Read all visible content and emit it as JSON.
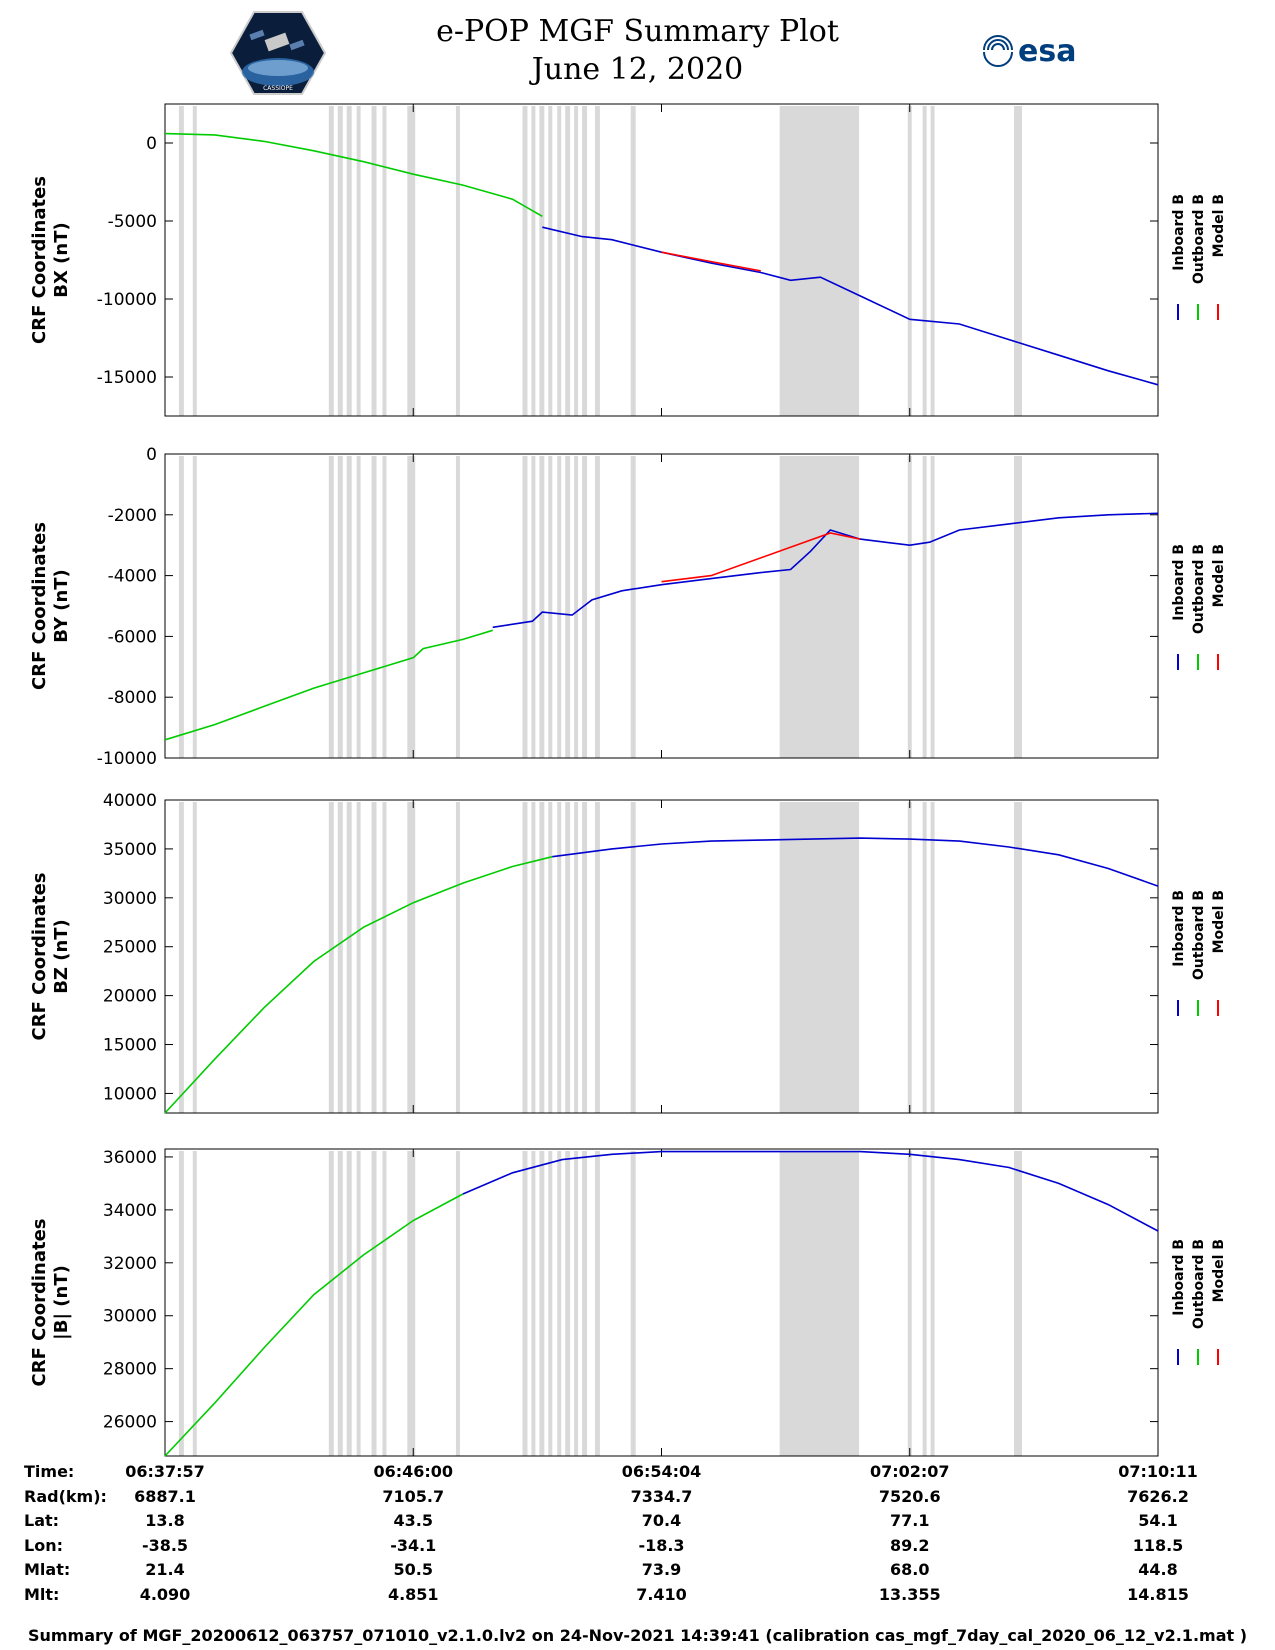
{
  "header": {
    "title_line1": "e-POP MGF Summary Plot",
    "title_line2": "June 12, 2020",
    "logo_left_text": "CASSIOPE",
    "logo_right_text": "esa"
  },
  "legend": [
    "Inboard B",
    "Outboard B",
    "Model B"
  ],
  "colors": {
    "inboard": "#0000d0",
    "outboard": "#00cc00",
    "model": "#ff0000",
    "gap": "#d9d9d9"
  },
  "chart_data": [
    {
      "type": "line",
      "ylabel_line1": "CRF Coordinates",
      "ylabel_line2": "BX (nT)",
      "ylim": [
        -17500,
        2500
      ],
      "yticks": [
        0,
        -5000,
        -10000,
        -15000
      ],
      "ytick_labels": [
        "0",
        "-5000",
        "-10000",
        "-15000"
      ],
      "series": [
        {
          "name": "Outboard B",
          "x": [
            0,
            0.05,
            0.1,
            0.15,
            0.2,
            0.25,
            0.3,
            0.35,
            0.38
          ],
          "values": [
            600,
            520,
            100,
            -500,
            -1200,
            -2000,
            -2700,
            -3600,
            -4700
          ]
        },
        {
          "name": "Inboard B",
          "x": [
            0.38,
            0.42,
            0.45,
            0.5,
            0.55,
            0.6,
            0.63,
            0.66,
            0.7,
            0.75,
            0.8,
            0.85,
            0.9,
            0.95,
            1.0
          ],
          "values": [
            -5400,
            -6000,
            -6200,
            -7000,
            -7700,
            -8300,
            -8800,
            -8600,
            -9800,
            -11300,
            -11600,
            -12600,
            -13600,
            -14600,
            -15500
          ]
        },
        {
          "name": "Model B",
          "x": [
            0.5,
            0.55,
            0.6
          ],
          "values": [
            -7000,
            -7600,
            -8200
          ]
        }
      ]
    },
    {
      "type": "line",
      "ylabel_line1": "CRF Coordinates",
      "ylabel_line2": "BY (nT)",
      "ylim": [
        -10000,
        0
      ],
      "yticks": [
        0,
        -2000,
        -4000,
        -6000,
        -8000,
        -10000
      ],
      "ytick_labels": [
        "0",
        "-2000",
        "-4000",
        "-6000",
        "-8000",
        "-10000"
      ],
      "series": [
        {
          "name": "Outboard B",
          "x": [
            0,
            0.05,
            0.1,
            0.15,
            0.2,
            0.25,
            0.26,
            0.3,
            0.33
          ],
          "values": [
            -9400,
            -8900,
            -8300,
            -7700,
            -7200,
            -6700,
            -6400,
            -6100,
            -5800
          ]
        },
        {
          "name": "Inboard B",
          "x": [
            0.33,
            0.37,
            0.38,
            0.41,
            0.43,
            0.46,
            0.5,
            0.55,
            0.6,
            0.63,
            0.65,
            0.67,
            0.7,
            0.75,
            0.77,
            0.8,
            0.85,
            0.9,
            0.95,
            1.0
          ],
          "values": [
            -5700,
            -5500,
            -5200,
            -5300,
            -4800,
            -4500,
            -4300,
            -4100,
            -3900,
            -3800,
            -3200,
            -2500,
            -2800,
            -3000,
            -2900,
            -2500,
            -2300,
            -2100,
            -2000,
            -1950
          ]
        },
        {
          "name": "Model B",
          "x": [
            0.5,
            0.55,
            0.67,
            0.7
          ],
          "values": [
            -4200,
            -4000,
            -2600,
            -2800
          ]
        }
      ]
    },
    {
      "type": "line",
      "ylabel_line1": "CRF Coordinates",
      "ylabel_line2": "BZ (nT)",
      "ylim": [
        8000,
        40000
      ],
      "yticks": [
        10000,
        15000,
        20000,
        25000,
        30000,
        35000,
        40000
      ],
      "ytick_labels": [
        "10000",
        "15000",
        "20000",
        "25000",
        "30000",
        "35000",
        "40000"
      ],
      "series": [
        {
          "name": "Outboard B",
          "x": [
            0,
            0.05,
            0.1,
            0.15,
            0.2,
            0.25,
            0.3,
            0.35,
            0.39
          ],
          "values": [
            8000,
            13500,
            18800,
            23500,
            27000,
            29500,
            31500,
            33200,
            34200
          ]
        },
        {
          "name": "Inboard B",
          "x": [
            0.39,
            0.45,
            0.5,
            0.55,
            0.6,
            0.65,
            0.7,
            0.75,
            0.8,
            0.85,
            0.9,
            0.95,
            1.0
          ],
          "values": [
            34200,
            35000,
            35500,
            35800,
            35900,
            36000,
            36100,
            36000,
            35800,
            35200,
            34400,
            33000,
            31200
          ]
        }
      ]
    },
    {
      "type": "line",
      "ylabel_line1": "CRF Coordinates",
      "ylabel_line2": "|B| (nT)",
      "ylim": [
        24700,
        36300
      ],
      "yticks": [
        26000,
        28000,
        30000,
        32000,
        34000,
        36000
      ],
      "ytick_labels": [
        "26000",
        "28000",
        "30000",
        "32000",
        "34000",
        "36000"
      ],
      "series": [
        {
          "name": "Outboard B",
          "x": [
            0,
            0.05,
            0.1,
            0.15,
            0.2,
            0.25,
            0.3
          ],
          "values": [
            24700,
            26700,
            28800,
            30800,
            32300,
            33600,
            34600
          ]
        },
        {
          "name": "Inboard B",
          "x": [
            0.3,
            0.35,
            0.4,
            0.45,
            0.5,
            0.55,
            0.6,
            0.65,
            0.7,
            0.75,
            0.8,
            0.85,
            0.9,
            0.95,
            1.0
          ],
          "values": [
            34600,
            35400,
            35900,
            36100,
            36200,
            36200,
            36200,
            36200,
            36200,
            36100,
            35900,
            35600,
            35000,
            34200,
            33200
          ]
        }
      ]
    }
  ],
  "data_gaps": [
    [
      0.014,
      0.019
    ],
    [
      0.028,
      0.032
    ],
    [
      0.165,
      0.17
    ],
    [
      0.174,
      0.179
    ],
    [
      0.183,
      0.188
    ],
    [
      0.193,
      0.197
    ],
    [
      0.208,
      0.213
    ],
    [
      0.219,
      0.223
    ],
    [
      0.244,
      0.252
    ],
    [
      0.293,
      0.297
    ],
    [
      0.36,
      0.365
    ],
    [
      0.369,
      0.373
    ],
    [
      0.377,
      0.382
    ],
    [
      0.386,
      0.39
    ],
    [
      0.395,
      0.399
    ],
    [
      0.403,
      0.408
    ],
    [
      0.412,
      0.416
    ],
    [
      0.42,
      0.425
    ],
    [
      0.433,
      0.438
    ],
    [
      0.469,
      0.474
    ],
    [
      0.619,
      0.699
    ],
    [
      0.748,
      0.752
    ],
    [
      0.763,
      0.767
    ],
    [
      0.771,
      0.775
    ],
    [
      0.855,
      0.863
    ]
  ],
  "footer_table": {
    "row_labels": [
      "Time:",
      "Rad(km):",
      "Lat:",
      "Lon:",
      "Mlat:",
      "Mlt:"
    ],
    "columns": [
      [
        "06:37:57",
        "6887.1",
        "13.8",
        "-38.5",
        "21.4",
        "4.090"
      ],
      [
        "06:46:00",
        "7105.7",
        "43.5",
        "-34.1",
        "50.5",
        "4.851"
      ],
      [
        "06:54:04",
        "7334.7",
        "70.4",
        "-18.3",
        "73.9",
        "7.410"
      ],
      [
        "07:02:07",
        "7520.6",
        "77.1",
        "89.2",
        "68.0",
        "13.355"
      ],
      [
        "07:10:11",
        "7626.2",
        "54.1",
        "118.5",
        "44.8",
        "14.815"
      ]
    ]
  },
  "footer_note": "Summary of MGF_20200612_063757_071010_v2.1.0.lv2 on 24-Nov-2021 14:39:41 (calibration cas_mgf_7day_cal_2020_06_12_v2.1.mat )"
}
